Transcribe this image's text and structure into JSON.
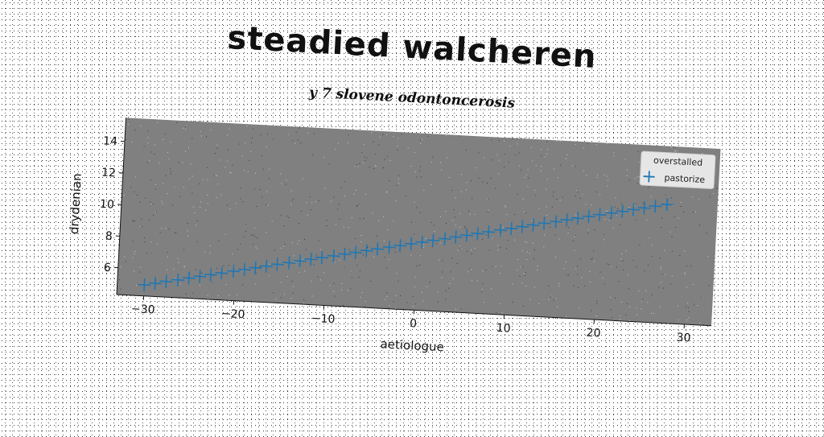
{
  "chart_data": {
    "type": "scatter",
    "title": "steadied walcheren",
    "subtitle": "y 7 slovene odontoncerosis",
    "xlabel": "aetiologue",
    "ylabel": "drydenian",
    "xlim": [
      -33,
      33
    ],
    "ylim": [
      4.3,
      15.5
    ],
    "xticks": [
      -30,
      -20,
      -10,
      0,
      10,
      20,
      30
    ],
    "xtick_labels": [
      "−30",
      "−20",
      "−10",
      "0",
      "10",
      "20",
      "30"
    ],
    "yticks": [
      6,
      8,
      10,
      12,
      14
    ],
    "ytick_labels": [
      "6",
      "8",
      "10",
      "12",
      "14"
    ],
    "grid": false,
    "legend_title": "overstalled",
    "legend_position": "top-right",
    "series": [
      {
        "name": "pastorize",
        "marker": "plus",
        "color": "#1f77b4",
        "x": [
          -30,
          -28.8,
          -27.6,
          -26.3,
          -25.1,
          -23.9,
          -22.7,
          -21.5,
          -20.2,
          -19,
          -17.8,
          -16.6,
          -15.4,
          -14.1,
          -12.9,
          -11.7,
          -10.5,
          -9.2,
          -8,
          -6.8,
          -5.6,
          -4.4,
          -3.1,
          -1.9,
          -0.7,
          0.5,
          1.7,
          3,
          4.2,
          5.4,
          6.6,
          7.8,
          9.1,
          10.3,
          11.5,
          12.7,
          13.9,
          15.2,
          16.4,
          17.6,
          18.8,
          20,
          21.3,
          22.5,
          23.7,
          24.9,
          26.1,
          27.4
        ],
        "y": [
          5,
          5.14,
          5.29,
          5.43,
          5.58,
          5.72,
          5.87,
          6.01,
          6.16,
          6.3,
          6.45,
          6.59,
          6.74,
          6.88,
          7.03,
          7.17,
          7.32,
          7.46,
          7.61,
          7.75,
          7.9,
          8.04,
          8.19,
          8.33,
          8.48,
          8.62,
          8.77,
          8.91,
          9.06,
          9.2,
          9.35,
          9.49,
          9.64,
          9.78,
          9.93,
          10.07,
          10.22,
          10.36,
          10.51,
          10.65,
          10.8,
          10.94,
          11.09,
          11.23,
          11.38,
          11.52,
          11.67,
          11.81
        ]
      }
    ]
  },
  "colors": {
    "plot_background": "#808080",
    "marker": "#1f77b4",
    "legend_background": "#e6e6e6"
  }
}
